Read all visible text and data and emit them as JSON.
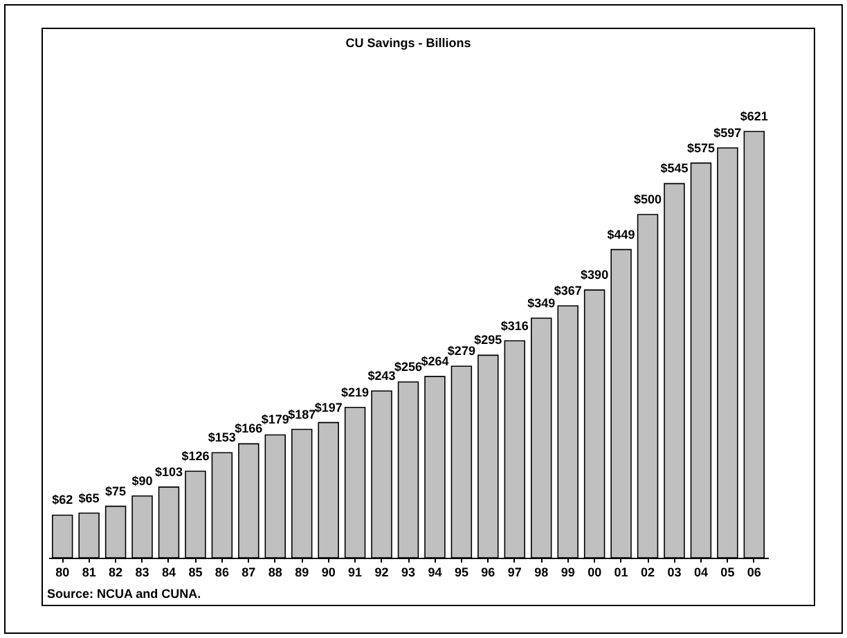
{
  "chart_data": {
    "type": "bar",
    "title": "CU Savings - Billions",
    "categories": [
      "80",
      "81",
      "82",
      "83",
      "84",
      "85",
      "86",
      "87",
      "88",
      "89",
      "90",
      "91",
      "92",
      "93",
      "94",
      "95",
      "96",
      "97",
      "98",
      "99",
      "00",
      "01",
      "02",
      "03",
      "04",
      "05",
      "06"
    ],
    "values": [
      62,
      65,
      75,
      90,
      103,
      126,
      153,
      166,
      179,
      187,
      197,
      219,
      243,
      256,
      264,
      279,
      295,
      316,
      349,
      367,
      390,
      449,
      500,
      545,
      575,
      597,
      621
    ],
    "value_labels": [
      "$62",
      "$65",
      "$75",
      "$90",
      "$103",
      "$126",
      "$153",
      "$166",
      "$179",
      "$187",
      "$197",
      "$219",
      "$243",
      "$256",
      "$264",
      "$279",
      "$295",
      "$316",
      "$349",
      "$367",
      "$390",
      "$449",
      "$500",
      "$545",
      "$575",
      "$597",
      "$621"
    ],
    "color": "#c0c0c0",
    "annotations": [
      "Source: NCUA and CUNA."
    ]
  }
}
